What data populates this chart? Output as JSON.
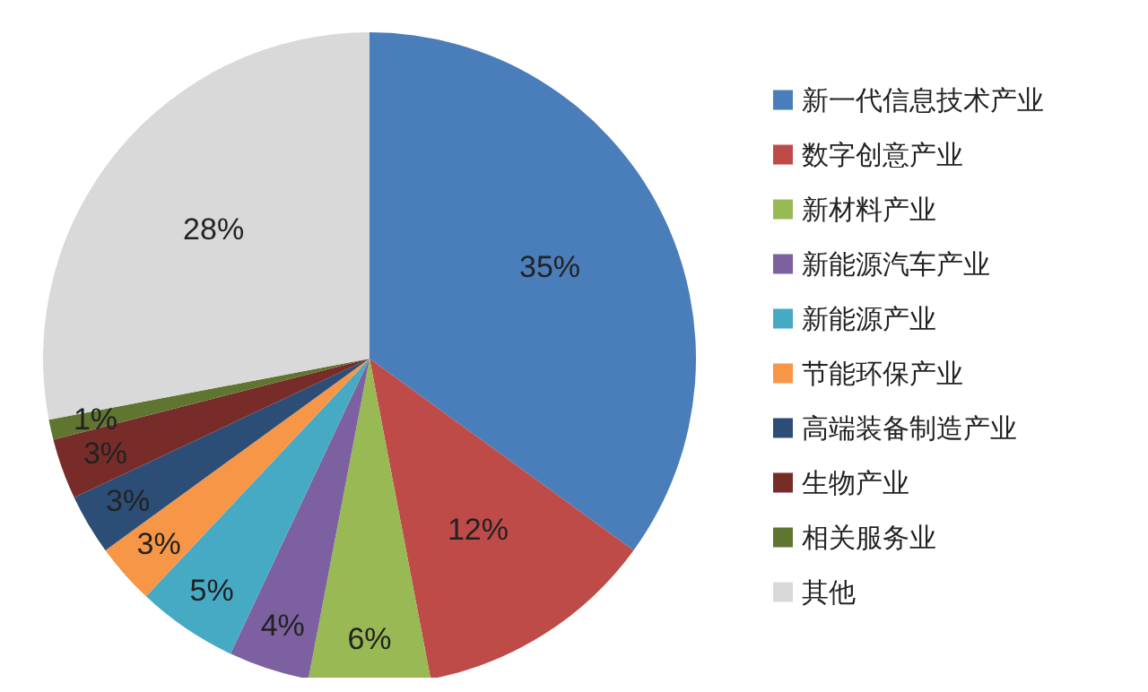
{
  "chart_data": {
    "type": "pie",
    "categories": [
      "新一代信息技术产业",
      "数字创意产业",
      "新材料产业",
      "新能源汽车产业",
      "新能源产业",
      "节能环保产业",
      "高端装备制造产业",
      "生物产业",
      "相关服务业",
      "其他"
    ],
    "values": [
      35,
      12,
      6,
      4,
      5,
      3,
      3,
      3,
      1,
      28
    ],
    "colors": [
      "#4a7ebb",
      "#be4b48",
      "#98b954",
      "#7d60a0",
      "#46aac5",
      "#f79646",
      "#2c4d75",
      "#772c2a",
      "#5f7530",
      "#d9d9d9"
    ],
    "value_labels": [
      "35%",
      "12%",
      "6%",
      "4%",
      "5%",
      "3%",
      "3%",
      "3%",
      "1%",
      "28%"
    ],
    "legend": "right"
  }
}
